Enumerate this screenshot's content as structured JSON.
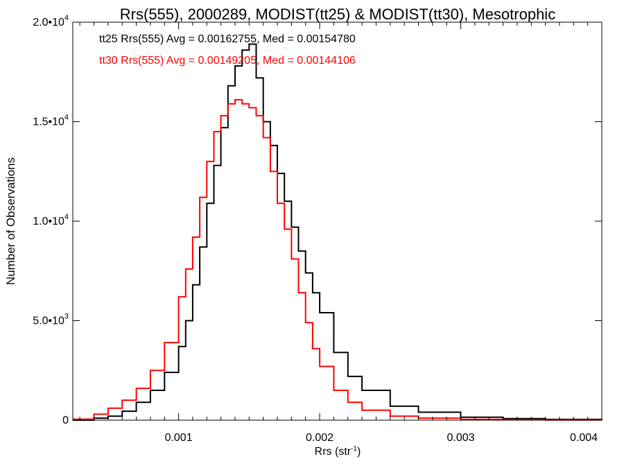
{
  "chart_data": {
    "type": "line",
    "title": "Rrs(555), 2000289, MODIST(tt25) & MODIST(tt30), Mesotrophic",
    "xlabel": "Rrs (str",
    "xlabel_sup": "-1",
    "xlabel_suffix": ")",
    "ylabel": "Number of Observations",
    "xlim": [
      0.00025,
      0.004
    ],
    "ylim": [
      0,
      20000
    ],
    "grid": false,
    "x_ticks": [
      {
        "value": 0.001,
        "label": "0.001"
      },
      {
        "value": 0.002,
        "label": "0.002"
      },
      {
        "value": 0.003,
        "label": "0.003"
      },
      {
        "value": 0.004,
        "label": "0.004"
      }
    ],
    "y_ticks": [
      {
        "value": 0,
        "mant": "0",
        "exp": ""
      },
      {
        "value": 5000,
        "mant": "5.0•10",
        "exp": "3"
      },
      {
        "value": 10000,
        "mant": "1.0•10",
        "exp": "4"
      },
      {
        "value": 15000,
        "mant": "1.5•10",
        "exp": "4"
      },
      {
        "value": 20000,
        "mant": "2.0•10",
        "exp": "4"
      }
    ],
    "annotations": [
      {
        "text": "tt25 Rrs(555) Avg = 0.00162755, Med = 0.00154780",
        "color": "#000000"
      },
      {
        "text": "tt30 Rrs(555) Avg = 0.00149205, Med = 0.00144106",
        "color": "#ff0000"
      }
    ],
    "series": [
      {
        "color": "#000000",
        "x": [
          0.00025,
          0.0004,
          0.0005,
          0.0006,
          0.0007,
          0.0008,
          0.0009,
          0.001,
          0.00105,
          0.0011,
          0.00115,
          0.0012,
          0.00125,
          0.0013,
          0.00135,
          0.0014,
          0.00145,
          0.0015,
          0.00155,
          0.0016,
          0.00165,
          0.0017,
          0.00175,
          0.0018,
          0.00185,
          0.0019,
          0.00195,
          0.002,
          0.0021,
          0.0022,
          0.0023,
          0.0025,
          0.0027,
          0.003,
          0.0033,
          0.0036,
          0.004
        ],
        "y": [
          0,
          100,
          200,
          450,
          900,
          1500,
          2400,
          3700,
          5000,
          6800,
          8700,
          10900,
          12800,
          14700,
          16800,
          17800,
          18600,
          18900,
          17200,
          15000,
          13800,
          12400,
          11000,
          9700,
          8500,
          7400,
          6400,
          5400,
          3400,
          2200,
          1500,
          700,
          400,
          150,
          80,
          40,
          20
        ]
      },
      {
        "color": "#ff0000",
        "x": [
          0.00025,
          0.0004,
          0.0005,
          0.0006,
          0.0007,
          0.0008,
          0.0009,
          0.001,
          0.00105,
          0.0011,
          0.00115,
          0.0012,
          0.00125,
          0.0013,
          0.00135,
          0.0014,
          0.00145,
          0.0015,
          0.00155,
          0.0016,
          0.00165,
          0.0017,
          0.00175,
          0.0018,
          0.00185,
          0.0019,
          0.00195,
          0.002,
          0.0021,
          0.0022,
          0.0023,
          0.0025,
          0.0027,
          0.003,
          0.0033,
          0.0036,
          0.004
        ],
        "y": [
          50,
          300,
          600,
          1000,
          1600,
          2500,
          3900,
          6200,
          7600,
          9200,
          11200,
          13000,
          14500,
          15300,
          15900,
          16100,
          15900,
          15700,
          15300,
          14200,
          12500,
          10900,
          9600,
          8100,
          6400,
          4900,
          3600,
          2700,
          1500,
          900,
          500,
          200,
          100,
          40,
          20,
          10,
          5
        ]
      }
    ]
  }
}
